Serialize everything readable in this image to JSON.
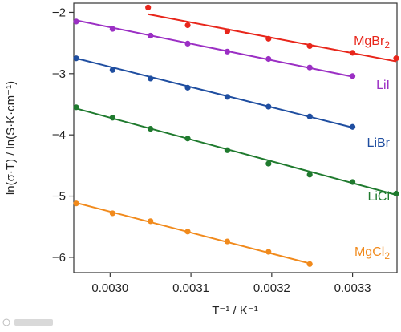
{
  "chart_data": {
    "type": "scatter",
    "title": "",
    "xlabel": "T⁻¹ / K⁻¹",
    "ylabel": "ln(σ·T) / ln(S·K·cm⁻¹)",
    "xlim": [
      0.002955,
      0.003355
    ],
    "ylim": [
      -6.25,
      -1.85
    ],
    "x_ticks": [
      0.003,
      0.0031,
      0.0032,
      0.0033
    ],
    "x_tick_labels": [
      "0.0030",
      "0.0031",
      "0.0032",
      "0.0033"
    ],
    "y_ticks": [
      -2,
      -3,
      -4,
      -5,
      -6
    ],
    "y_tick_labels": [
      "−2",
      "−3",
      "−4",
      "−5",
      "−6"
    ],
    "grid": false,
    "legend": "none",
    "series": [
      {
        "name": "MgBr₂",
        "color": "#e8261b",
        "x": [
          0.003047,
          0.003096,
          0.003145,
          0.003196,
          0.003247,
          0.0033,
          0.003354
        ],
        "y": [
          -1.92,
          -2.21,
          -2.31,
          -2.43,
          -2.55,
          -2.66,
          -2.75
        ],
        "fit": {
          "x": [
            0.003047,
            0.003354
          ],
          "y": [
            -2.03,
            -2.8
          ]
        }
      },
      {
        "name": "LiI",
        "color": "#9b2fc4",
        "x": [
          0.002958,
          0.003003,
          0.00305,
          0.003096,
          0.003145,
          0.003196,
          0.003247,
          0.0033
        ],
        "y": [
          -2.15,
          -2.27,
          -2.38,
          -2.51,
          -2.64,
          -2.76,
          -2.9,
          -3.04
        ],
        "fit": {
          "x": [
            0.002958,
            0.0033
          ],
          "y": [
            -2.13,
            -3.05
          ]
        }
      },
      {
        "name": "LiBr",
        "color": "#1f4ea0",
        "x": [
          0.002958,
          0.003003,
          0.00305,
          0.003096,
          0.003145,
          0.003196,
          0.003247,
          0.0033
        ],
        "y": [
          -2.75,
          -2.94,
          -3.08,
          -3.23,
          -3.38,
          -3.54,
          -3.7,
          -3.87
        ],
        "fit": {
          "x": [
            0.002958,
            0.0033
          ],
          "y": [
            -2.75,
            -3.88
          ]
        }
      },
      {
        "name": "LiCl",
        "color": "#1f7a2e",
        "x": [
          0.002958,
          0.003003,
          0.00305,
          0.003096,
          0.003145,
          0.003196,
          0.003247,
          0.0033,
          0.003354
        ],
        "y": [
          -3.55,
          -3.72,
          -3.9,
          -4.06,
          -4.25,
          -4.47,
          -4.65,
          -4.77,
          -4.96
        ],
        "fit": {
          "x": [
            0.002958,
            0.003354
          ],
          "y": [
            -3.57,
            -4.98
          ]
        }
      },
      {
        "name": "MgCl₂",
        "color": "#f18a1c",
        "x": [
          0.002958,
          0.003003,
          0.00305,
          0.003096,
          0.003145,
          0.003196,
          0.003247
        ],
        "y": [
          -5.12,
          -5.28,
          -5.41,
          -5.58,
          -5.74,
          -5.91,
          -6.11
        ],
        "fit": {
          "x": [
            0.002958,
            0.003247
          ],
          "y": [
            -5.11,
            -6.1
          ]
        }
      }
    ]
  }
}
